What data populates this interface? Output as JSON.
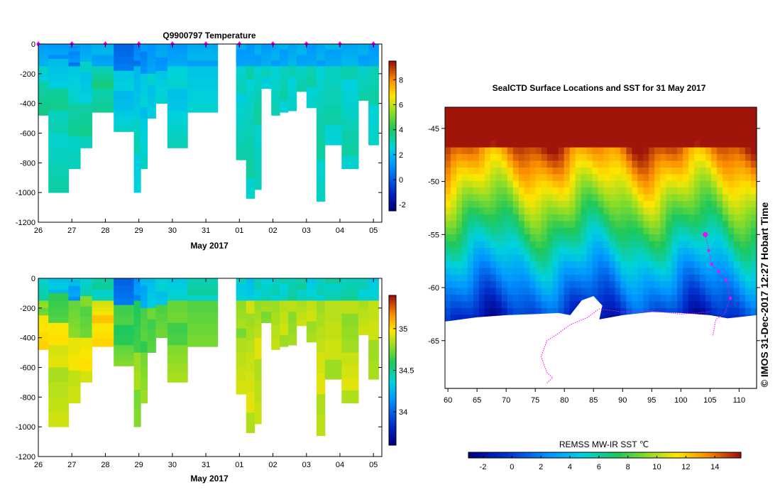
{
  "chart_data": [
    {
      "id": "temperature",
      "type": "heatmap",
      "title": "Q9900797  Temperature",
      "xlabel": "May 2017",
      "ylabel": "",
      "x_ticks": [
        "26",
        "27",
        "28",
        "29",
        "30",
        "31",
        "01",
        "02",
        "03",
        "04",
        "05"
      ],
      "y_ticks": [
        "0",
        "-200",
        "-400",
        "-600",
        "-800",
        "-1000",
        "-1200"
      ],
      "ylim": [
        -1200,
        0
      ],
      "colorbar_ticks": [
        "8",
        "6",
        "4",
        "2",
        "0",
        "-2"
      ],
      "colorbar_range": [
        -2.5,
        9.5
      ],
      "profiles": [
        {
          "day": 0.0,
          "w": 0.3,
          "depth": 480,
          "layers": [
            [
              0,
              150,
              1.6
            ],
            [
              150,
              250,
              2.6
            ],
            [
              250,
              480,
              3.3
            ]
          ]
        },
        {
          "day": 0.3,
          "w": 0.6,
          "depth": 1000,
          "layers": [
            [
              0,
              100,
              1.2
            ],
            [
              100,
              300,
              2.3
            ],
            [
              300,
              600,
              3.2
            ],
            [
              600,
              1000,
              2.9
            ]
          ]
        },
        {
          "day": 0.9,
          "w": 0.35,
          "depth": 840,
          "layers": [
            [
              0,
              50,
              1.2
            ],
            [
              50,
              150,
              0.8
            ],
            [
              150,
              400,
              2.6
            ],
            [
              400,
              840,
              3.1
            ]
          ]
        },
        {
          "day": 1.25,
          "w": 0.35,
          "depth": 700,
          "layers": [
            [
              0,
              120,
              1.5
            ],
            [
              120,
              400,
              2.5
            ],
            [
              400,
              700,
              3.2
            ]
          ]
        },
        {
          "day": 1.6,
          "w": 0.65,
          "depth": 460,
          "layers": [
            [
              0,
              150,
              1.6
            ],
            [
              150,
              250,
              3.1
            ],
            [
              250,
              460,
              3.4
            ]
          ]
        },
        {
          "day": 2.25,
          "w": 0.6,
          "depth": 590,
          "layers": [
            [
              0,
              180,
              0.4
            ],
            [
              180,
              450,
              2.2
            ],
            [
              450,
              590,
              2.5
            ]
          ]
        },
        {
          "day": 2.85,
          "w": 0.2,
          "depth": 1000,
          "layers": [
            [
              0,
              150,
              0.7
            ],
            [
              150,
              500,
              2.2
            ],
            [
              500,
              1000,
              2.7
            ]
          ]
        },
        {
          "day": 3.05,
          "w": 0.2,
          "depth": 840,
          "layers": [
            [
              0,
              200,
              1.0
            ],
            [
              200,
              500,
              2.3
            ],
            [
              500,
              840,
              2.7
            ]
          ]
        },
        {
          "day": 3.25,
          "w": 0.25,
          "depth": 500,
          "layers": [
            [
              0,
              200,
              1.2
            ],
            [
              200,
              500,
              2.4
            ]
          ]
        },
        {
          "day": 3.5,
          "w": 0.35,
          "depth": 400,
          "layers": [
            [
              0,
              180,
              1.3
            ],
            [
              180,
              400,
              2.4
            ]
          ]
        },
        {
          "day": 3.85,
          "w": 0.6,
          "depth": 700,
          "layers": [
            [
              0,
              150,
              1.4
            ],
            [
              150,
              450,
              2.4
            ],
            [
              450,
              700,
              2.7
            ]
          ]
        },
        {
          "day": 4.45,
          "w": 0.9,
          "depth": 460,
          "layers": [
            [
              0,
              150,
              1.6
            ],
            [
              150,
              460,
              2.5
            ]
          ]
        },
        {
          "day": 5.9,
          "w": 0.3,
          "depth": 780,
          "layers": [
            [
              0,
              150,
              1.4
            ],
            [
              150,
              400,
              2.7
            ],
            [
              400,
              780,
              3.0
            ]
          ]
        },
        {
          "day": 6.2,
          "w": 0.25,
          "depth": 1040,
          "layers": [
            [
              0,
              150,
              1.2
            ],
            [
              150,
              500,
              2.9
            ],
            [
              500,
              1040,
              3.0
            ]
          ]
        },
        {
          "day": 6.45,
          "w": 0.2,
          "depth": 980,
          "layers": [
            [
              0,
              150,
              1.5
            ],
            [
              150,
              400,
              2.8
            ],
            [
              400,
              980,
              3.0
            ]
          ]
        },
        {
          "day": 6.65,
          "w": 0.3,
          "depth": 300,
          "layers": [
            [
              0,
              150,
              1.5
            ],
            [
              150,
              300,
              2.7
            ]
          ]
        },
        {
          "day": 6.95,
          "w": 0.25,
          "depth": 480,
          "layers": [
            [
              0,
              150,
              1.5
            ],
            [
              150,
              480,
              2.9
            ]
          ]
        },
        {
          "day": 7.2,
          "w": 0.25,
          "depth": 460,
          "layers": [
            [
              0,
              150,
              1.5
            ],
            [
              150,
              460,
              2.9
            ]
          ]
        },
        {
          "day": 7.45,
          "w": 0.25,
          "depth": 450,
          "layers": [
            [
              0,
              150,
              1.6
            ],
            [
              150,
              450,
              2.8
            ]
          ]
        },
        {
          "day": 7.7,
          "w": 0.3,
          "depth": 320,
          "layers": [
            [
              0,
              150,
              1.6
            ],
            [
              150,
              320,
              2.9
            ]
          ]
        },
        {
          "day": 8.0,
          "w": 0.3,
          "depth": 430,
          "layers": [
            [
              0,
              150,
              1.4
            ],
            [
              150,
              430,
              2.9
            ]
          ]
        },
        {
          "day": 8.3,
          "w": 0.25,
          "depth": 1060,
          "layers": [
            [
              0,
              150,
              1.5
            ],
            [
              150,
              500,
              2.9
            ],
            [
              500,
              1060,
              3.0
            ]
          ]
        },
        {
          "day": 8.55,
          "w": 0.5,
          "depth": 680,
          "layers": [
            [
              0,
              150,
              1.6
            ],
            [
              150,
              680,
              2.9
            ]
          ]
        },
        {
          "day": 9.05,
          "w": 0.5,
          "depth": 840,
          "layers": [
            [
              0,
              150,
              1.6
            ],
            [
              150,
              500,
              2.8
            ],
            [
              500,
              840,
              3.0
            ]
          ]
        },
        {
          "day": 9.55,
          "w": 0.3,
          "depth": 380,
          "layers": [
            [
              0,
              150,
              1.5
            ],
            [
              150,
              380,
              2.9
            ]
          ]
        },
        {
          "day": 9.85,
          "w": 0.3,
          "depth": 680,
          "layers": [
            [
              0,
              150,
              1.4
            ],
            [
              150,
              680,
              2.9
            ]
          ]
        }
      ],
      "surface_markers": [
        0.0,
        1.0,
        2.0,
        3.0,
        4.0,
        5.0,
        6.0,
        7.0,
        8.0,
        9.0,
        10.0
      ]
    },
    {
      "id": "salinity",
      "type": "heatmap",
      "title": "",
      "xlabel": "May 2017",
      "ylabel": "",
      "x_ticks": [
        "26",
        "27",
        "28",
        "29",
        "30",
        "31",
        "01",
        "02",
        "03",
        "04",
        "05"
      ],
      "y_ticks": [
        "0",
        "-200",
        "-400",
        "-600",
        "-800",
        "-1000",
        "-1200"
      ],
      "ylim": [
        -1200,
        0
      ],
      "colorbar_ticks": [
        "35",
        "34.5",
        "34"
      ],
      "colorbar_range": [
        33.6,
        35.4
      ],
      "profiles_from": "temperature"
    },
    {
      "id": "sst_map",
      "type": "heatmap",
      "title": "SealCTD Surface Locations and SST for 31 May 2017",
      "xlabel": "",
      "ylabel": "",
      "x_ticks": [
        "60",
        "65",
        "70",
        "75",
        "80",
        "85",
        "90",
        "95",
        "100",
        "105",
        "110"
      ],
      "y_ticks": [
        "-45",
        "-50",
        "-55",
        "-60",
        "-65"
      ],
      "xlim": [
        59.5,
        113
      ],
      "ylim": [
        -69.5,
        -43
      ],
      "colorbar_title": "REMSS MW-IR SST ℃",
      "colorbar_ticks": [
        "-2",
        "0",
        "2",
        "4",
        "6",
        "8",
        "10",
        "12",
        "14"
      ],
      "colorbar_range": [
        -3,
        15.8
      ],
      "track": [
        [
          104.2,
          -55
        ],
        [
          104.8,
          -56.5
        ],
        [
          105.3,
          -57.8
        ],
        [
          106.5,
          -58.5
        ],
        [
          107.8,
          -59.3
        ],
        [
          108.5,
          -61.0
        ],
        [
          107.5,
          -62.5
        ],
        [
          106.0,
          -63.0
        ],
        [
          105.5,
          -64.5
        ]
      ],
      "track2": [
        [
          105,
          -62.3
        ],
        [
          100,
          -62.5
        ],
        [
          95,
          -62.2
        ],
        [
          90,
          -62.3
        ],
        [
          86,
          -62.0
        ],
        [
          84,
          -62.8
        ],
        [
          81,
          -63.5
        ],
        [
          78.5,
          -64.5
        ],
        [
          77,
          -65
        ],
        [
          76,
          -66.5
        ],
        [
          77,
          -68
        ],
        [
          78,
          -68.5
        ],
        [
          77,
          -69
        ]
      ],
      "current_position": [
        104.2,
        -55.0
      ]
    }
  ],
  "watermark": "©  IMOS 31-Dec-2017 12:27 Hobart Time",
  "colors": {
    "track": "#ff00ff",
    "axis": "#000000",
    "land": "#ffffff"
  }
}
